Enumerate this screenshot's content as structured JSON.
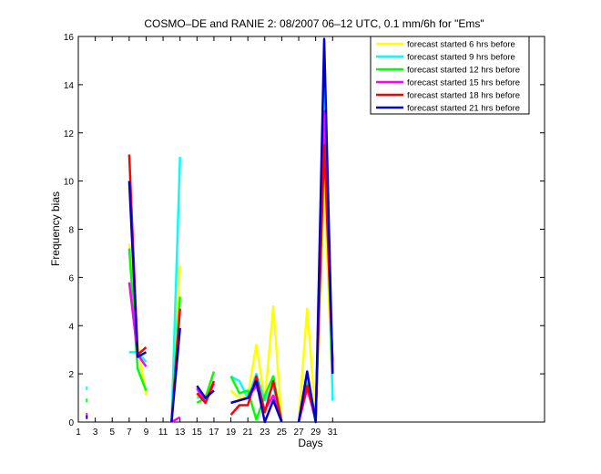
{
  "chart_data": {
    "type": "line",
    "title": "COSMO–DE and RANIE 2: 08/2007 06–12 UTC, 0.1 mm/6h for \"Ems\"",
    "xlabel": "Days",
    "ylabel": "Frequency bias",
    "xlim": [
      1,
      56
    ],
    "ylim": [
      0,
      16
    ],
    "xticks": [
      1,
      3,
      5,
      7,
      9,
      11,
      13,
      15,
      17,
      19,
      21,
      23,
      25,
      27,
      29,
      31
    ],
    "yticks": [
      0,
      2,
      4,
      6,
      8,
      10,
      12,
      14,
      16
    ],
    "grid": false,
    "legend_position": "top-right",
    "series": [
      {
        "name": "forecast started 6 hrs before",
        "color": "#ffff00",
        "segments": [
          [
            [
              7,
              7.4
            ],
            [
              8,
              3.2
            ],
            [
              9,
              1.1
            ]
          ],
          [
            [
              12,
              0
            ],
            [
              13,
              6.5
            ]
          ],
          [
            [
              15,
              1.1
            ],
            [
              16,
              0.9
            ],
            [
              17,
              1.7
            ]
          ],
          [
            [
              19,
              1.3
            ],
            [
              20,
              1.0
            ],
            [
              21,
              1.1
            ],
            [
              22,
              3.2
            ],
            [
              23,
              0.9
            ],
            [
              24,
              4.8
            ],
            [
              25,
              0
            ]
          ],
          [
            [
              27,
              0
            ],
            [
              28,
              4.7
            ],
            [
              29,
              0.2
            ],
            [
              30,
              10.0
            ],
            [
              31,
              1.2
            ]
          ]
        ],
        "points": []
      },
      {
        "name": "forecast started 9 hrs before",
        "color": "#00ffff",
        "segments": [
          [
            [
              7,
              2.9
            ],
            [
              8,
              2.9
            ],
            [
              9,
              2.5
            ]
          ],
          [
            [
              12,
              0
            ],
            [
              13,
              11.0
            ]
          ],
          [
            [
              15,
              1.0
            ],
            [
              16,
              1.1
            ],
            [
              17,
              1.3
            ]
          ],
          [
            [
              19,
              1.9
            ],
            [
              20,
              1.7
            ],
            [
              21,
              1.0
            ],
            [
              22,
              2.0
            ],
            [
              23,
              0.9
            ],
            [
              24,
              1.5
            ],
            [
              25,
              0
            ]
          ],
          [
            [
              27,
              0
            ],
            [
              28,
              1.8
            ],
            [
              29,
              0.0
            ],
            [
              30,
              14.0
            ],
            [
              31,
              0.9
            ]
          ]
        ],
        "points": [
          [
            2,
            1.4
          ]
        ]
      },
      {
        "name": "forecast started 12 hrs before",
        "color": "#00ff00",
        "segments": [
          [
            [
              7,
              7.2
            ],
            [
              8,
              2.2
            ],
            [
              9,
              1.3
            ]
          ],
          [
            [
              12,
              0
            ],
            [
              13,
              5.2
            ]
          ],
          [
            [
              15,
              0.8
            ],
            [
              16,
              1.0
            ],
            [
              17,
              2.1
            ]
          ],
          [
            [
              19,
              1.9
            ],
            [
              20,
              1.2
            ],
            [
              21,
              1.3
            ],
            [
              22,
              0.1
            ],
            [
              23,
              1.1
            ],
            [
              24,
              1.9
            ],
            [
              25,
              0
            ]
          ],
          [
            [
              27,
              0
            ],
            [
              28,
              1.6
            ],
            [
              29,
              0.0
            ],
            [
              30,
              12.0
            ],
            [
              31,
              2.0
            ]
          ]
        ],
        "points": [
          [
            2,
            0.9
          ]
        ]
      },
      {
        "name": "forecast started 15 hrs before",
        "color": "#ff00ff",
        "segments": [
          [
            [
              7,
              5.8
            ],
            [
              8,
              2.8
            ],
            [
              9,
              2.3
            ]
          ],
          [
            [
              12,
              0
            ],
            [
              13,
              0.2
            ]
          ],
          [
            [
              15,
              1.4
            ],
            [
              16,
              0.8
            ],
            [
              17,
              1.6
            ]
          ],
          [
            [
              19,
              0.8
            ],
            [
              20,
              0.9
            ],
            [
              21,
              1.0
            ],
            [
              22,
              1.5
            ],
            [
              23,
              0.5
            ],
            [
              24,
              1.1
            ],
            [
              25,
              0
            ]
          ],
          [
            [
              27,
              0
            ],
            [
              28,
              1.4
            ],
            [
              29,
              0.1
            ],
            [
              30,
              12.9
            ],
            [
              31,
              2.2
            ]
          ]
        ],
        "points": [
          [
            2,
            0.3
          ]
        ]
      },
      {
        "name": "forecast started 18 hrs before",
        "color": "#ff0000",
        "segments": [
          [
            [
              7,
              11.1
            ],
            [
              8,
              2.8
            ],
            [
              9,
              3.1
            ]
          ],
          [
            [
              12,
              0
            ],
            [
              13,
              4.7
            ]
          ],
          [
            [
              15,
              1.2
            ],
            [
              16,
              0.8
            ],
            [
              17,
              1.7
            ]
          ],
          [
            [
              19,
              0.3
            ],
            [
              20,
              0.7
            ],
            [
              21,
              0.7
            ],
            [
              22,
              1.9
            ],
            [
              23,
              0.4
            ],
            [
              24,
              1.7
            ],
            [
              25,
              0
            ]
          ],
          [
            [
              27,
              0
            ],
            [
              28,
              1.5
            ],
            [
              29,
              0.2
            ],
            [
              30,
              11.5
            ],
            [
              31,
              2.5
            ]
          ]
        ],
        "points": []
      },
      {
        "name": "forecast started 21 hrs before",
        "color": "#0000cc",
        "segments": [
          [
            [
              7,
              10.0
            ],
            [
              8,
              2.7
            ],
            [
              9,
              2.9
            ]
          ],
          [
            [
              12,
              0
            ],
            [
              13,
              3.9
            ]
          ],
          [
            [
              15,
              1.5
            ],
            [
              16,
              1.0
            ],
            [
              17,
              1.3
            ]
          ],
          [
            [
              19,
              0.8
            ],
            [
              20,
              0.9
            ],
            [
              21,
              1.0
            ],
            [
              22,
              1.7
            ],
            [
              23,
              0.0
            ],
            [
              24,
              0.9
            ],
            [
              25,
              0
            ]
          ],
          [
            [
              27,
              0
            ],
            [
              28,
              2.1
            ],
            [
              29,
              0.0
            ],
            [
              30,
              15.9
            ],
            [
              31,
              2.0
            ]
          ]
        ],
        "points": [
          [
            2,
            0.2
          ]
        ]
      }
    ]
  }
}
